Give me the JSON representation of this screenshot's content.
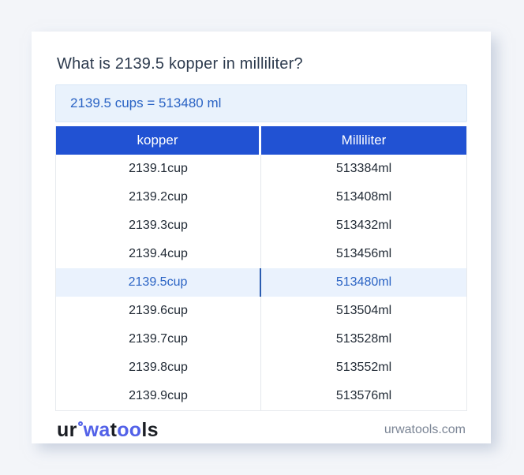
{
  "title": "What is 2139.5 kopper in milliliter?",
  "answer": "2139.5 cups = 513480 ml",
  "table": {
    "headers": [
      "kopper",
      "Milliliter"
    ],
    "rows": [
      {
        "cup": "2139.1cup",
        "ml": "513384ml",
        "highlight": false
      },
      {
        "cup": "2139.2cup",
        "ml": "513408ml",
        "highlight": false
      },
      {
        "cup": "2139.3cup",
        "ml": "513432ml",
        "highlight": false
      },
      {
        "cup": "2139.4cup",
        "ml": "513456ml",
        "highlight": false
      },
      {
        "cup": "2139.5cup",
        "ml": "513480ml",
        "highlight": true
      },
      {
        "cup": "2139.6cup",
        "ml": "513504ml",
        "highlight": false
      },
      {
        "cup": "2139.7cup",
        "ml": "513528ml",
        "highlight": false
      },
      {
        "cup": "2139.8cup",
        "ml": "513552ml",
        "highlight": false
      },
      {
        "cup": "2139.9cup",
        "ml": "513576ml",
        "highlight": false
      }
    ]
  },
  "footer": {
    "logo_parts": {
      "p1": "ur",
      "p2": "wa",
      "p3": "t",
      "p4": "oo",
      "p5": "ls"
    },
    "site": "urwatools.com"
  },
  "colors": {
    "page_bg": "#f3f5f9",
    "header_bg": "#2152d3",
    "accent_text": "#2a63c4",
    "answer_bg": "#e9f2fc",
    "highlight_bg": "#eaf2fd",
    "logo_blue": "#5261e8",
    "title_text": "#2d3b4e",
    "site_text": "#7b8595"
  }
}
